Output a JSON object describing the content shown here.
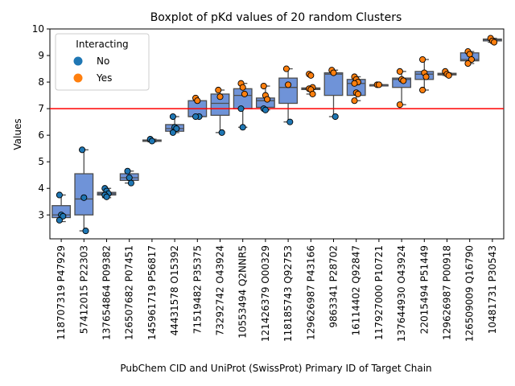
{
  "chart_data": {
    "type": "box",
    "title": "Boxplot of pKd values of 20 random Clusters",
    "xlabel": "PubChem CID and UniProt (SwissProt) Primary ID of Target Chain",
    "ylabel": "Values",
    "ylim": [
      2.1,
      10
    ],
    "yticks": [
      3,
      4,
      5,
      6,
      7,
      8,
      9,
      10
    ],
    "grid": false,
    "threshold": {
      "value": 7.0,
      "color": "#ff0000"
    },
    "box_color": "#6f93d8",
    "legend": {
      "title": "Interacting",
      "placement": "top-left",
      "entries": [
        {
          "label": "No",
          "color": "#1f77b4"
        },
        {
          "label": "Yes",
          "color": "#ff7f0e"
        }
      ]
    },
    "categories": [
      {
        "label": "118707319 P47929",
        "box": [
          2.75,
          2.9,
          3.0,
          3.35,
          3.75
        ],
        "points": [
          {
            "v": 3.75,
            "i": "No"
          },
          {
            "v": 3.0,
            "i": "No"
          },
          {
            "v": 2.95,
            "i": "No"
          },
          {
            "v": 2.8,
            "i": "No"
          }
        ]
      },
      {
        "label": "57412015 P22303",
        "box": [
          2.4,
          3.0,
          3.6,
          4.55,
          5.45
        ],
        "points": [
          {
            "v": 5.45,
            "i": "No"
          },
          {
            "v": 3.65,
            "i": "No"
          },
          {
            "v": 2.4,
            "i": "No"
          }
        ]
      },
      {
        "label": "137654864 P09382",
        "box": [
          3.65,
          3.75,
          3.8,
          3.85,
          4.0
        ],
        "points": [
          {
            "v": 4.0,
            "i": "No"
          },
          {
            "v": 3.9,
            "i": "No"
          },
          {
            "v": 3.8,
            "i": "No"
          },
          {
            "v": 3.75,
            "i": "No"
          },
          {
            "v": 3.68,
            "i": "No"
          }
        ]
      },
      {
        "label": "126507682 P07451",
        "box": [
          4.2,
          4.3,
          4.4,
          4.55,
          4.65
        ],
        "points": [
          {
            "v": 4.65,
            "i": "No"
          },
          {
            "v": 4.4,
            "i": "No"
          },
          {
            "v": 4.2,
            "i": "No"
          }
        ]
      },
      {
        "label": "145961719 P56817",
        "box": [
          5.75,
          5.77,
          5.8,
          5.82,
          5.85
        ],
        "points": [
          {
            "v": 5.85,
            "i": "No"
          },
          {
            "v": 5.78,
            "i": "No"
          }
        ]
      },
      {
        "label": "44431578 O15392",
        "box": [
          6.1,
          6.15,
          6.25,
          6.4,
          6.7
        ],
        "points": [
          {
            "v": 6.7,
            "i": "No"
          },
          {
            "v": 6.3,
            "i": "No"
          },
          {
            "v": 6.25,
            "i": "No"
          },
          {
            "v": 6.1,
            "i": "No"
          }
        ]
      },
      {
        "label": "71519482 P35375",
        "box": [
          6.7,
          6.7,
          6.7,
          7.3,
          7.3
        ],
        "points": [
          {
            "v": 7.4,
            "i": "Yes"
          },
          {
            "v": 7.3,
            "i": "Yes"
          },
          {
            "v": 6.7,
            "i": "No"
          },
          {
            "v": 6.7,
            "i": "No"
          }
        ]
      },
      {
        "label": "73292742 O43924",
        "box": [
          6.1,
          6.75,
          7.2,
          7.55,
          7.7
        ],
        "points": [
          {
            "v": 7.7,
            "i": "Yes"
          },
          {
            "v": 7.45,
            "i": "Yes"
          },
          {
            "v": 6.1,
            "i": "No"
          }
        ]
      },
      {
        "label": "10553494 Q2NNR5",
        "box": [
          6.3,
          7.0,
          7.5,
          7.75,
          7.95
        ],
        "points": [
          {
            "v": 7.95,
            "i": "Yes"
          },
          {
            "v": 7.8,
            "i": "Yes"
          },
          {
            "v": 7.55,
            "i": "Yes"
          },
          {
            "v": 7.0,
            "i": "No"
          },
          {
            "v": 6.3,
            "i": "No"
          }
        ]
      },
      {
        "label": "121426379 O00329",
        "box": [
          6.95,
          7.05,
          7.3,
          7.4,
          7.85
        ],
        "points": [
          {
            "v": 7.85,
            "i": "Yes"
          },
          {
            "v": 7.5,
            "i": "Yes"
          },
          {
            "v": 7.35,
            "i": "Yes"
          },
          {
            "v": 7.0,
            "i": "No"
          },
          {
            "v": 6.95,
            "i": "No"
          }
        ]
      },
      {
        "label": "118185743 Q92753",
        "box": [
          6.5,
          7.2,
          7.8,
          8.15,
          8.5
        ],
        "points": [
          {
            "v": 8.5,
            "i": "Yes"
          },
          {
            "v": 7.9,
            "i": "Yes"
          },
          {
            "v": 6.5,
            "i": "No"
          }
        ]
      },
      {
        "label": "129626987 P43166",
        "box": [
          7.55,
          7.72,
          7.75,
          7.78,
          7.8
        ],
        "points": [
          {
            "v": 8.3,
            "i": "Yes"
          },
          {
            "v": 8.25,
            "i": "Yes"
          },
          {
            "v": 7.8,
            "i": "Yes"
          },
          {
            "v": 7.75,
            "i": "Yes"
          },
          {
            "v": 7.72,
            "i": "Yes"
          },
          {
            "v": 7.55,
            "i": "Yes"
          }
        ]
      },
      {
        "label": "9863341 P28702",
        "box": [
          6.7,
          7.5,
          8.3,
          8.35,
          8.45
        ],
        "points": [
          {
            "v": 8.45,
            "i": "Yes"
          },
          {
            "v": 8.35,
            "i": "Yes"
          },
          {
            "v": 6.7,
            "i": "No"
          }
        ]
      },
      {
        "label": "16114402 Q92847",
        "box": [
          7.3,
          7.5,
          7.95,
          8.1,
          8.2
        ],
        "points": [
          {
            "v": 8.2,
            "i": "Yes"
          },
          {
            "v": 8.1,
            "i": "Yes"
          },
          {
            "v": 8.0,
            "i": "Yes"
          },
          {
            "v": 7.95,
            "i": "Yes"
          },
          {
            "v": 7.6,
            "i": "Yes"
          },
          {
            "v": 7.55,
            "i": "Yes"
          },
          {
            "v": 7.3,
            "i": "Yes"
          }
        ]
      },
      {
        "label": "117927000 P10721",
        "box": [
          7.9,
          7.9,
          7.9,
          7.9,
          7.9
        ],
        "points": [
          {
            "v": 7.9,
            "i": "Yes"
          },
          {
            "v": 7.9,
            "i": "Yes"
          }
        ]
      },
      {
        "label": "137644930 O43924",
        "box": [
          7.15,
          7.8,
          8.1,
          8.15,
          8.4
        ],
        "points": [
          {
            "v": 8.4,
            "i": "Yes"
          },
          {
            "v": 8.1,
            "i": "Yes"
          },
          {
            "v": 8.05,
            "i": "Yes"
          },
          {
            "v": 7.15,
            "i": "Yes"
          }
        ]
      },
      {
        "label": "22015494 P51449",
        "box": [
          7.7,
          8.1,
          8.3,
          8.4,
          8.85
        ],
        "points": [
          {
            "v": 8.85,
            "i": "Yes"
          },
          {
            "v": 8.35,
            "i": "Yes"
          },
          {
            "v": 8.2,
            "i": "Yes"
          },
          {
            "v": 7.7,
            "i": "Yes"
          }
        ]
      },
      {
        "label": "129626987 P00918",
        "box": [
          8.25,
          8.27,
          8.3,
          8.33,
          8.35
        ],
        "points": [
          {
            "v": 8.4,
            "i": "Yes"
          },
          {
            "v": 8.3,
            "i": "Yes"
          },
          {
            "v": 8.25,
            "i": "Yes"
          }
        ]
      },
      {
        "label": "126509009 Q16790",
        "box": [
          8.7,
          8.8,
          8.85,
          9.1,
          9.15
        ],
        "points": [
          {
            "v": 9.15,
            "i": "Yes"
          },
          {
            "v": 9.05,
            "i": "Yes"
          },
          {
            "v": 8.85,
            "i": "Yes"
          },
          {
            "v": 8.7,
            "i": "Yes"
          }
        ]
      },
      {
        "label": "10481731 P30543",
        "box": [
          9.5,
          9.55,
          9.6,
          9.62,
          9.65
        ],
        "points": [
          {
            "v": 9.65,
            "i": "Yes"
          },
          {
            "v": 9.55,
            "i": "Yes"
          },
          {
            "v": 9.5,
            "i": "Yes"
          }
        ]
      }
    ]
  }
}
